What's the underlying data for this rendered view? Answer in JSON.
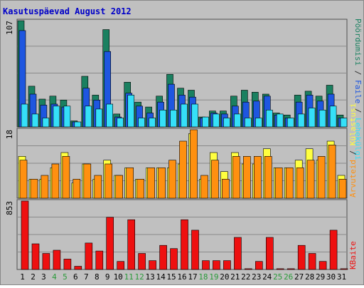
{
  "chart_data": {
    "type": "bar",
    "title": "Kasutuspäevad August 2012",
    "categories": [
      "1",
      "2",
      "3",
      "4",
      "5",
      "6",
      "7",
      "8",
      "9",
      "10",
      "11",
      "12",
      "13",
      "14",
      "15",
      "16",
      "17",
      "18",
      "19",
      "20",
      "21",
      "22",
      "23",
      "24",
      "25",
      "26",
      "27",
      "28",
      "29",
      "30",
      "31"
    ],
    "weekend_days": [
      "4",
      "5",
      "11",
      "12",
      "18",
      "19",
      "25",
      "26"
    ],
    "panels": [
      {
        "scale_label": "107",
        "ylim": [
          0,
          107
        ],
        "series": [
          {
            "name": "Pöördumisi",
            "color": "#1a8060",
            "values": [
              107,
              41,
              28,
              31,
              27,
              6,
              51,
              32,
              98,
              13,
              45,
              25,
              20,
              31,
              53,
              39,
              37,
              10,
              16,
              16,
              31,
              37,
              35,
              33,
              14,
              12,
              32,
              36,
              31,
              42,
              12
            ]
          },
          {
            "name": "Faile",
            "color": "#1e56e0",
            "values": [
              97,
              33,
              22,
              23,
              20,
              5,
              39,
              27,
              76,
              10,
              34,
              21,
              14,
              25,
              43,
              32,
              30,
              9,
              14,
              13,
              21,
              25,
              26,
              31,
              12,
              9,
              25,
              32,
              26,
              33,
              9
            ]
          },
          {
            "name": "Lehekülgi",
            "color": "#35e0f8",
            "values": [
              23,
              13,
              9,
              21,
              21,
              5,
              21,
              18,
              23,
              9,
              32,
              9,
              9,
              17,
              17,
              23,
              23,
              10,
              13,
              9,
              13,
              9,
              9,
              17,
              13,
              9,
              13,
              19,
              17,
              21,
              9
            ]
          }
        ]
      },
      {
        "scale_label": "18",
        "ylim": [
          0,
          18
        ],
        "series": [
          {
            "name": "Külastusi",
            "color": "#ffff40",
            "values": [
              11,
              5,
              5,
              8,
              12,
              4,
              9,
              5,
              10,
              6,
              8,
              5,
              8,
              8,
              8,
              9,
              17,
              5,
              12,
              7,
              12,
              9,
              9,
              13,
              8,
              8,
              10,
              13,
              10,
              15,
              6
            ]
          },
          {
            "name": "Arvuteid",
            "color": "#ff9010",
            "values": [
              10,
              5,
              6,
              9,
              11,
              5,
              9,
              6,
              9,
              6,
              8,
              5,
              8,
              8,
              10,
              15,
              18,
              6,
              10,
              5,
              11,
              11,
              11,
              11,
              8,
              8,
              8,
              10,
              11,
              14,
              5
            ]
          }
        ]
      },
      {
        "scale_label": "853",
        "ylim": [
          0,
          853
        ],
        "series": [
          {
            "name": "KBaite",
            "color": "#ee1010",
            "values": [
              853,
              320,
              200,
              240,
              130,
              40,
              330,
              230,
              650,
              100,
              620,
              200,
              110,
              300,
              260,
              620,
              490,
              110,
              110,
              110,
              400,
              10,
              100,
              400,
              10,
              10,
              300,
              200,
              100,
              490,
              10
            ]
          }
        ]
      }
    ]
  },
  "legends": {
    "panel1": {
      "part1": "Pöördumisi",
      "sep1": " / ",
      "part2": "Faile",
      "sep2": " / ",
      "part3": "Lehekülgi"
    },
    "panel2": {
      "part1": "Külastusi",
      "sep1": " / ",
      "part2": "Arvuteid"
    },
    "panel3": {
      "part1": "KBaite"
    }
  }
}
